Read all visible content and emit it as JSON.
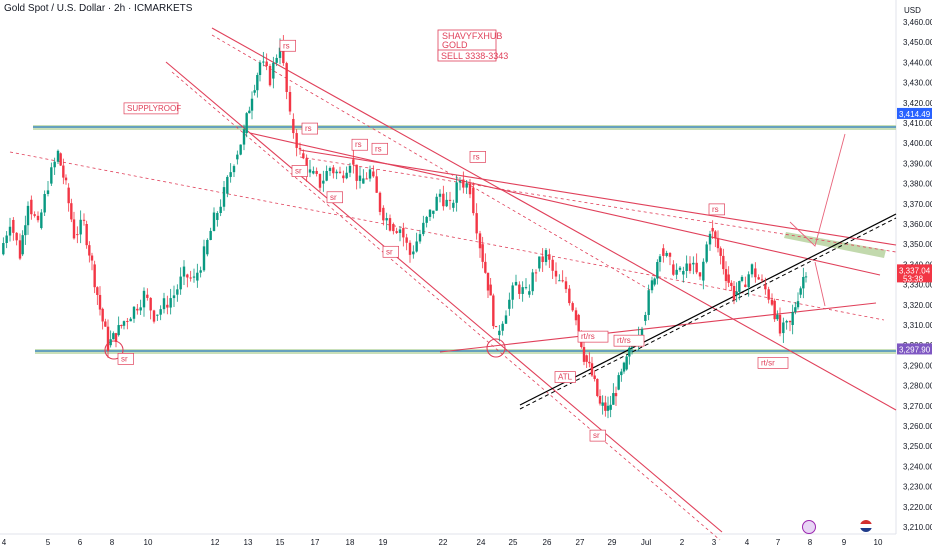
{
  "header": {
    "symbol_title": "Gold Spot / U.S. Dollar · 2h · ICMARKETS",
    "currency": "USD"
  },
  "signal": {
    "line1": "SHAVYFXHUB",
    "line2": "GOLD",
    "line3": "SELL 3338-3343"
  },
  "chart_data": {
    "type": "candlestick",
    "y_range": [
      3205,
      3470
    ],
    "y_ticks": [
      3210,
      3220,
      3230,
      3240,
      3250,
      3260,
      3270,
      3280,
      3290,
      3300,
      3310,
      3320,
      3330,
      3340,
      3350,
      3360,
      3370,
      3380,
      3390,
      3400,
      3410,
      3420,
      3430,
      3440,
      3450,
      3460
    ],
    "x_ticks": [
      "4",
      "5",
      "6",
      "8",
      "10",
      "12",
      "13",
      "15",
      "17",
      "18",
      "19",
      "22",
      "24",
      "25",
      "26",
      "27",
      "29",
      "Jul",
      "2",
      "3",
      "4",
      "7",
      "8",
      "9",
      "10"
    ],
    "price_tags": [
      {
        "label": "3,414.49",
        "price": 3414.49,
        "color": "#2962ff"
      },
      {
        "label": "3,337.04",
        "sub": "53:38",
        "price": 3337.04,
        "color": "#f23645"
      },
      {
        "label": "3,297.90",
        "price": 3297.9,
        "color": "#7e57c2"
      }
    ],
    "horizontal_levels": [
      {
        "price": 3414.49,
        "name": "resistance-zone"
      },
      {
        "price": 3297.9,
        "name": "support-zone"
      }
    ],
    "annotations": [
      {
        "text": "rs",
        "tick": "15",
        "price": 3447
      },
      {
        "text": "rs",
        "tick": "15",
        "price": 3406
      },
      {
        "text": "sr",
        "tick": "15",
        "price": 3385
      },
      {
        "text": "rs",
        "tick": "18",
        "price": 3398
      },
      {
        "text": "rs",
        "tick": "18",
        "price": 3396
      },
      {
        "text": "sr",
        "tick": "17",
        "price": 3372
      },
      {
        "text": "sr",
        "tick": "19",
        "price": 3345
      },
      {
        "text": "rs",
        "tick": "22",
        "price": 3392
      },
      {
        "text": "sr",
        "tick": "8",
        "price": 3292
      },
      {
        "text": "rt/rs",
        "tick": "27",
        "price": 3303
      },
      {
        "text": "rt/rs",
        "tick": "29",
        "price": 3301
      },
      {
        "text": "ATL",
        "tick": "27",
        "price": 3283
      },
      {
        "text": "sr",
        "tick": "29",
        "price": 3254
      },
      {
        "text": "rs",
        "tick": "3",
        "price": 3366
      },
      {
        "text": "rt/sr",
        "tick": "7",
        "price": 3290
      },
      {
        "text": "SUPPLYROOF",
        "tick": "8",
        "price": 3416
      }
    ]
  }
}
